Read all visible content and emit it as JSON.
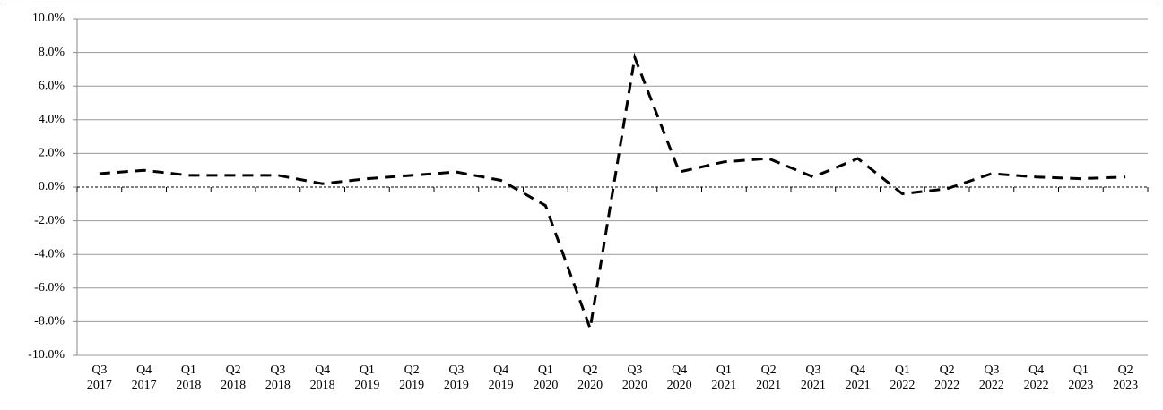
{
  "chart_data": {
    "type": "line",
    "categories": [
      "Q3 2017",
      "Q4 2017",
      "Q1 2018",
      "Q2 2018",
      "Q3 2018",
      "Q4 2018",
      "Q1 2019",
      "Q2 2019",
      "Q3 2019",
      "Q4 2019",
      "Q1 2020",
      "Q2 2020",
      "Q3 2020",
      "Q4 2020",
      "Q1 2021",
      "Q2 2021",
      "Q3 2021",
      "Q4 2021",
      "Q1 2022",
      "Q2 2022",
      "Q3 2022",
      "Q4 2022",
      "Q1 2023",
      "Q2 2023"
    ],
    "values": [
      0.8,
      1.0,
      0.7,
      0.7,
      0.7,
      0.2,
      0.5,
      0.7,
      0.9,
      0.4,
      -1.1,
      -8.4,
      7.7,
      0.9,
      1.5,
      1.7,
      0.6,
      1.7,
      -0.4,
      -0.1,
      0.8,
      0.6,
      0.5,
      0.6
    ],
    "color": "#000000",
    "ylim": [
      -10,
      10
    ],
    "yticks": [
      {
        "value": -10,
        "label": "-10.0%"
      },
      {
        "value": -8,
        "label": "-8.0%"
      },
      {
        "value": -6,
        "label": "-6.0%"
      },
      {
        "value": -4,
        "label": "-4.0%"
      },
      {
        "value": -2,
        "label": "-2.0%"
      },
      {
        "value": 0,
        "label": "0.0%"
      },
      {
        "value": 2,
        "label": "2.0%"
      },
      {
        "value": 4,
        "label": "4.0%"
      },
      {
        "value": 6,
        "label": "6.0%"
      },
      {
        "value": 8,
        "label": "8.0%"
      },
      {
        "value": 10,
        "label": "10.0%"
      }
    ],
    "grid": true
  }
}
